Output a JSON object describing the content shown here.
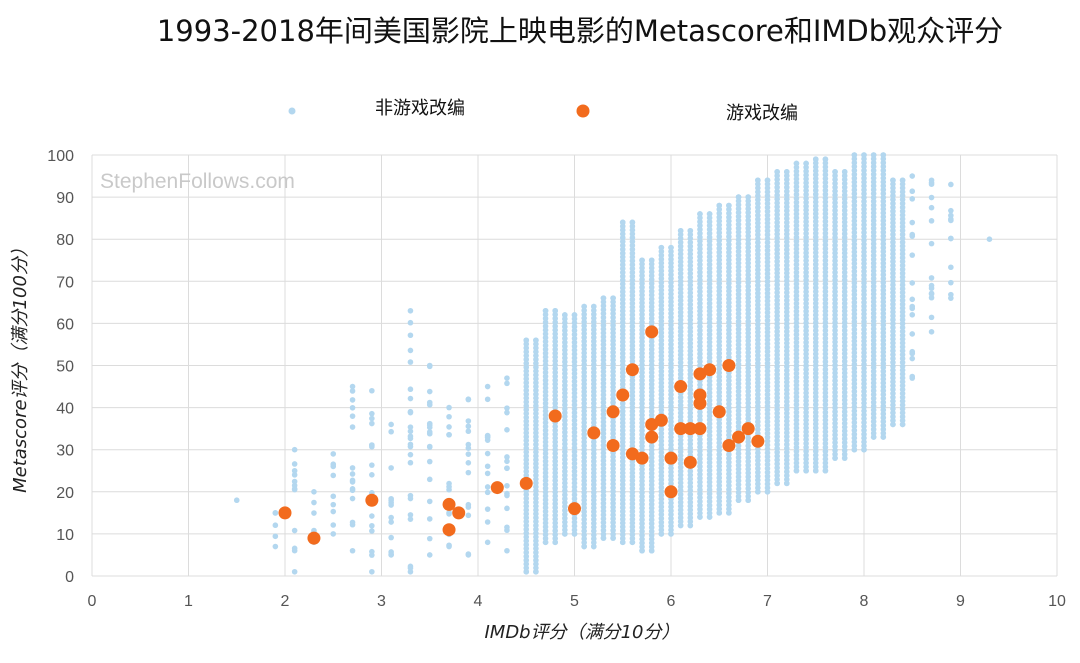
{
  "chart_data": {
    "type": "scatter",
    "title": "1993-2018年间美国影院上映电影的Metascore和IMDb观众评分",
    "xlabel": "IMDb评分（满分10分）",
    "ylabel": "Metascore评分（满分100分）",
    "xlim": [
      0,
      10
    ],
    "ylim": [
      0,
      100
    ],
    "x_ticks": [
      "0",
      "1",
      "2",
      "3",
      "4",
      "5",
      "6",
      "7",
      "8",
      "9",
      "10"
    ],
    "y_ticks": [
      "0",
      "10",
      "20",
      "30",
      "40",
      "50",
      "60",
      "70",
      "80",
      "90",
      "100"
    ],
    "grid": true,
    "legend_position": "top",
    "watermark": "StephenFollows.com",
    "colors": {
      "non_game": "#b3d7ef",
      "game": "#f26b1d"
    },
    "series": [
      {
        "name": "非游戏改编",
        "note": "approx. 4000 films; density described by per-IMDb-score Metascore ranges",
        "density": [
          {
            "x": 1.5,
            "ymin": 18,
            "ymax": 18
          },
          {
            "x": 1.9,
            "ymin": 7,
            "ymax": 15
          },
          {
            "x": 2.1,
            "ymin": 1,
            "ymax": 30
          },
          {
            "x": 2.3,
            "ymin": 8,
            "ymax": 20
          },
          {
            "x": 2.5,
            "ymin": 10,
            "ymax": 29
          },
          {
            "x": 2.7,
            "ymin": 6,
            "ymax": 45
          },
          {
            "x": 2.9,
            "ymin": 1,
            "ymax": 44
          },
          {
            "x": 3.1,
            "ymin": 5,
            "ymax": 36
          },
          {
            "x": 3.3,
            "ymin": 1,
            "ymax": 63
          },
          {
            "x": 3.5,
            "ymin": 5,
            "ymax": 50
          },
          {
            "x": 3.7,
            "ymin": 7,
            "ymax": 40
          },
          {
            "x": 3.9,
            "ymin": 5,
            "ymax": 42
          },
          {
            "x": 4.1,
            "ymin": 8,
            "ymax": 45
          },
          {
            "x": 4.3,
            "ymin": 6,
            "ymax": 47
          },
          {
            "x": 4.5,
            "ymin": 1,
            "ymax": 56
          },
          {
            "x": 4.7,
            "ymin": 8,
            "ymax": 63
          },
          {
            "x": 4.9,
            "ymin": 10,
            "ymax": 62
          },
          {
            "x": 5.1,
            "ymin": 7,
            "ymax": 64
          },
          {
            "x": 5.3,
            "ymin": 9,
            "ymax": 66
          },
          {
            "x": 5.5,
            "ymin": 8,
            "ymax": 84
          },
          {
            "x": 5.7,
            "ymin": 6,
            "ymax": 75
          },
          {
            "x": 5.9,
            "ymin": 10,
            "ymax": 78
          },
          {
            "x": 6.1,
            "ymin": 12,
            "ymax": 82
          },
          {
            "x": 6.3,
            "ymin": 14,
            "ymax": 86
          },
          {
            "x": 6.5,
            "ymin": 15,
            "ymax": 88
          },
          {
            "x": 6.7,
            "ymin": 18,
            "ymax": 90
          },
          {
            "x": 6.9,
            "ymin": 20,
            "ymax": 94
          },
          {
            "x": 7.1,
            "ymin": 22,
            "ymax": 96
          },
          {
            "x": 7.3,
            "ymin": 25,
            "ymax": 98
          },
          {
            "x": 7.5,
            "ymin": 25,
            "ymax": 99
          },
          {
            "x": 7.7,
            "ymin": 28,
            "ymax": 96
          },
          {
            "x": 7.9,
            "ymin": 30,
            "ymax": 100
          },
          {
            "x": 8.1,
            "ymin": 33,
            "ymax": 100
          },
          {
            "x": 8.3,
            "ymin": 36,
            "ymax": 94
          },
          {
            "x": 8.5,
            "ymin": 47,
            "ymax": 95
          },
          {
            "x": 8.7,
            "ymin": 58,
            "ymax": 94
          },
          {
            "x": 8.9,
            "ymin": 66,
            "ymax": 93
          },
          {
            "x": 9.3,
            "ymin": 80,
            "ymax": 80
          }
        ]
      },
      {
        "name": "游戏改编",
        "points": [
          [
            2.0,
            15
          ],
          [
            2.3,
            9
          ],
          [
            2.9,
            18
          ],
          [
            3.7,
            17
          ],
          [
            3.7,
            11
          ],
          [
            3.8,
            15
          ],
          [
            4.2,
            21
          ],
          [
            4.5,
            22
          ],
          [
            4.8,
            38
          ],
          [
            5.0,
            16
          ],
          [
            5.2,
            34
          ],
          [
            5.4,
            39
          ],
          [
            5.4,
            31
          ],
          [
            5.5,
            43
          ],
          [
            5.6,
            49
          ],
          [
            5.6,
            29
          ],
          [
            5.7,
            28
          ],
          [
            5.8,
            58
          ],
          [
            5.8,
            36
          ],
          [
            5.8,
            33
          ],
          [
            5.9,
            37
          ],
          [
            6.0,
            28
          ],
          [
            6.0,
            20
          ],
          [
            6.1,
            45
          ],
          [
            6.1,
            35
          ],
          [
            6.2,
            35
          ],
          [
            6.2,
            27
          ],
          [
            6.3,
            48
          ],
          [
            6.3,
            43
          ],
          [
            6.3,
            41
          ],
          [
            6.3,
            35
          ],
          [
            6.4,
            49
          ],
          [
            6.5,
            39
          ],
          [
            6.6,
            50
          ],
          [
            6.6,
            31
          ],
          [
            6.7,
            33
          ],
          [
            6.8,
            35
          ],
          [
            6.9,
            32
          ]
        ]
      }
    ]
  }
}
